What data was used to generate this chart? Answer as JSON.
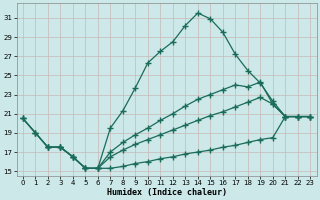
{
  "xlabel": "Humidex (Indice chaleur)",
  "bg_color": "#cce8e8",
  "grid_color": "#c8b8b8",
  "line_color": "#1a6b5a",
  "xlim": [
    -0.5,
    23.5
  ],
  "ylim": [
    14.5,
    32.5
  ],
  "yticks": [
    15,
    17,
    19,
    21,
    23,
    25,
    27,
    29,
    31
  ],
  "xticks": [
    0,
    1,
    2,
    3,
    4,
    5,
    6,
    7,
    8,
    9,
    10,
    11,
    12,
    13,
    14,
    15,
    16,
    17,
    18,
    19,
    20,
    21,
    22,
    23
  ],
  "line1_x": [
    0,
    1,
    2,
    3,
    4,
    5,
    6,
    7,
    8,
    9,
    10,
    11,
    12,
    13,
    14,
    15,
    16,
    17,
    18,
    19,
    20,
    21,
    22,
    23
  ],
  "line1_y": [
    20.5,
    19.0,
    17.5,
    17.5,
    16.5,
    15.3,
    15.3,
    19.5,
    21.3,
    23.7,
    26.3,
    27.5,
    28.5,
    30.2,
    31.5,
    30.9,
    29.5,
    27.2,
    25.5,
    24.2,
    22.3,
    20.7,
    20.7,
    20.7
  ],
  "line2_x": [
    0,
    1,
    2,
    3,
    4,
    5,
    6,
    7,
    8,
    9,
    10,
    11,
    12,
    13,
    14,
    15,
    16,
    17,
    18,
    19,
    20,
    21,
    22,
    23
  ],
  "line2_y": [
    20.5,
    19.0,
    17.5,
    17.5,
    16.5,
    15.3,
    15.3,
    16.5,
    17.2,
    17.8,
    18.3,
    18.8,
    19.3,
    19.8,
    20.3,
    20.8,
    21.2,
    21.7,
    22.2,
    22.7,
    22.0,
    20.7,
    20.7,
    20.7
  ],
  "line3_x": [
    0,
    1,
    2,
    3,
    4,
    5,
    6,
    7,
    8,
    9,
    10,
    11,
    12,
    13,
    14,
    15,
    16,
    17,
    18,
    19,
    20,
    21,
    22,
    23
  ],
  "line3_y": [
    20.5,
    19.0,
    17.5,
    17.5,
    16.5,
    15.3,
    15.3,
    17.0,
    18.0,
    18.8,
    19.5,
    20.3,
    21.0,
    21.8,
    22.5,
    23.0,
    23.5,
    24.0,
    23.8,
    24.3,
    22.0,
    20.7,
    20.7,
    20.7
  ],
  "line4_x": [
    2,
    3,
    4,
    5,
    6,
    7,
    8,
    9,
    10,
    11,
    12,
    13,
    14,
    15,
    16,
    17,
    18,
    19,
    20,
    21,
    22,
    23
  ],
  "line4_y": [
    17.5,
    17.5,
    16.5,
    15.3,
    15.3,
    15.3,
    15.5,
    15.8,
    16.0,
    16.3,
    16.5,
    16.8,
    17.0,
    17.2,
    17.5,
    17.7,
    18.0,
    18.3,
    18.5,
    20.7,
    20.7,
    20.7
  ]
}
